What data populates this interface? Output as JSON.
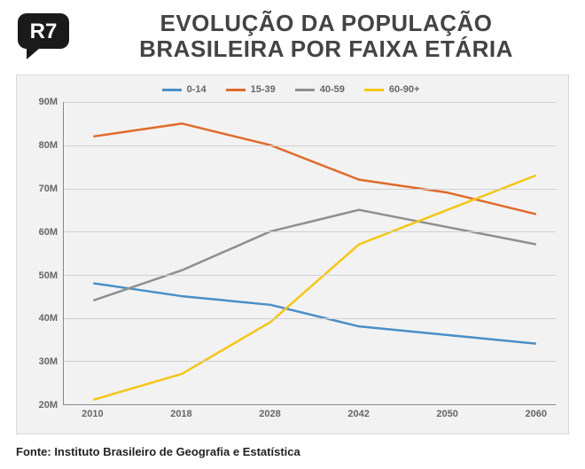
{
  "header": {
    "title_line1": "EVOLUÇÃO DA POPULAÇÃO",
    "title_line2": "BRASILEIRA POR FAIXA ETÁRIA",
    "title_fontsize": 26,
    "title_color": "#444444",
    "logo_text": "R7",
    "logo_bg": "#1a1a1a",
    "logo_text_color": "#ffffff"
  },
  "chart": {
    "type": "line",
    "background_color": "#f2f2f2",
    "border_color": "#d9d9d9",
    "grid_color": "#d0d0d0",
    "axis_color": "#888888",
    "line_width": 2.5,
    "x": {
      "categories": [
        "2010",
        "2018",
        "2028",
        "2042",
        "2050",
        "2060"
      ],
      "positions": [
        0.06,
        0.24,
        0.42,
        0.6,
        0.78,
        0.96
      ]
    },
    "y": {
      "min": 20,
      "max": 90,
      "step": 10,
      "ticks": [
        "20M",
        "30M",
        "40M",
        "50M",
        "60M",
        "70M",
        "80M",
        "90M"
      ],
      "tick_fontsize": 11,
      "tick_color": "#666666"
    },
    "legend": {
      "fontsize": 11,
      "color": "#666666",
      "swatch_w": 22,
      "swatch_h": 3
    },
    "series": [
      {
        "name": "0-14",
        "color": "#4a8fc7",
        "values": [
          48,
          45,
          43,
          38,
          36,
          34
        ]
      },
      {
        "name": "15-39",
        "color": "#e06a2b",
        "values": [
          82,
          85,
          80,
          72,
          69,
          64
        ]
      },
      {
        "name": "40-59",
        "color": "#8f8f8f",
        "values": [
          44,
          51,
          60,
          65,
          61,
          57
        ]
      },
      {
        "name": "60-90+",
        "color": "#f5c518",
        "values": [
          21,
          27,
          39,
          57,
          65,
          73
        ]
      }
    ]
  },
  "source": {
    "label": "Fonte: Instituto Brasileiro de Geografia e Estatística",
    "fontsize": 13,
    "color": "#222222"
  }
}
